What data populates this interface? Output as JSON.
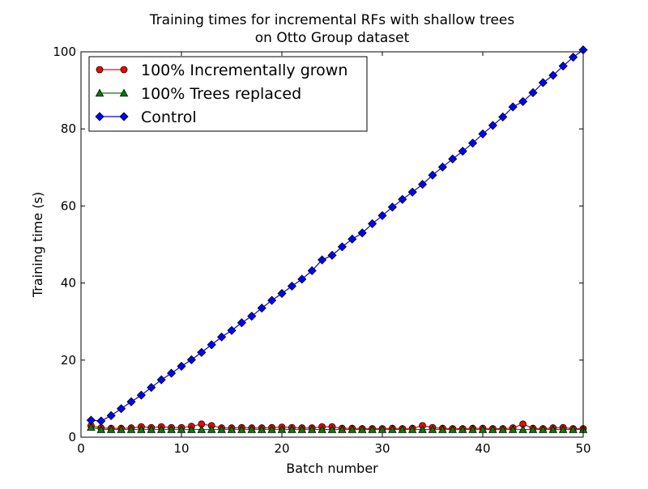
{
  "chart_data": {
    "type": "line",
    "title": "Training times for incremental RFs with shallow trees",
    "subtitle": "on Otto Group dataset",
    "xlabel": "Batch number",
    "ylabel": "Training time (s)",
    "xlim": [
      0,
      50
    ],
    "ylim": [
      0,
      100
    ],
    "xticks": [
      0,
      10,
      20,
      30,
      40,
      50
    ],
    "yticks": [
      0,
      20,
      40,
      60,
      80,
      100
    ],
    "grid": false,
    "legend_position": "top-left",
    "x": [
      1,
      2,
      3,
      4,
      5,
      6,
      7,
      8,
      9,
      10,
      11,
      12,
      13,
      14,
      15,
      16,
      17,
      18,
      19,
      20,
      21,
      22,
      23,
      24,
      25,
      26,
      27,
      28,
      29,
      30,
      31,
      32,
      33,
      34,
      35,
      36,
      37,
      38,
      39,
      40,
      41,
      42,
      43,
      44,
      45,
      46,
      47,
      48,
      49,
      50
    ],
    "series": [
      {
        "name": "100% Incrementally grown",
        "marker": "circle",
        "color": "#ff0000",
        "line_color": "#ff0000",
        "values": [
          3.0,
          2.4,
          2.3,
          2.3,
          2.4,
          2.7,
          2.5,
          2.7,
          2.5,
          2.5,
          2.8,
          3.4,
          3.0,
          2.4,
          2.4,
          2.5,
          2.4,
          2.4,
          2.5,
          2.6,
          2.5,
          2.4,
          2.4,
          2.7,
          2.7,
          2.3,
          2.3,
          2.2,
          2.2,
          2.2,
          2.3,
          2.2,
          2.3,
          3.0,
          2.5,
          2.3,
          2.2,
          2.2,
          2.3,
          2.3,
          2.2,
          2.2,
          2.4,
          3.4,
          2.3,
          2.2,
          2.4,
          2.5,
          2.2,
          2.2
        ]
      },
      {
        "name": "100% Trees replaced",
        "marker": "triangle",
        "color": "#007f00",
        "line_color": "#007f00",
        "values": [
          2.6,
          2.0,
          2.0,
          2.0,
          2.0,
          2.0,
          2.0,
          2.0,
          2.0,
          2.0,
          2.0,
          2.0,
          2.0,
          2.0,
          2.0,
          2.0,
          2.0,
          2.0,
          2.0,
          2.0,
          2.0,
          2.0,
          2.0,
          2.0,
          2.0,
          2.0,
          2.0,
          2.0,
          2.0,
          2.0,
          2.0,
          2.0,
          2.0,
          2.0,
          2.0,
          2.0,
          2.0,
          2.0,
          2.0,
          2.0,
          2.0,
          2.0,
          2.0,
          2.0,
          2.0,
          2.0,
          2.0,
          2.0,
          2.0,
          2.0
        ]
      },
      {
        "name": "Control",
        "marker": "diamond",
        "color": "#0000ff",
        "line_color": "#0000ff",
        "values": [
          4.4,
          4.2,
          5.6,
          7.4,
          9.2,
          10.9,
          12.9,
          14.9,
          16.6,
          18.4,
          20.1,
          22.0,
          24.0,
          26.0,
          27.7,
          29.7,
          31.4,
          33.5,
          35.5,
          37.3,
          39.2,
          41.0,
          43.2,
          46.0,
          47.2,
          49.4,
          51.4,
          53.0,
          55.4,
          57.5,
          59.7,
          61.7,
          63.6,
          65.6,
          68.0,
          70.1,
          72.2,
          74.2,
          76.3,
          78.7,
          80.9,
          83.1,
          85.7,
          87.1,
          89.4,
          92.0,
          93.9,
          96.3,
          98.6,
          100.5
        ]
      }
    ]
  }
}
